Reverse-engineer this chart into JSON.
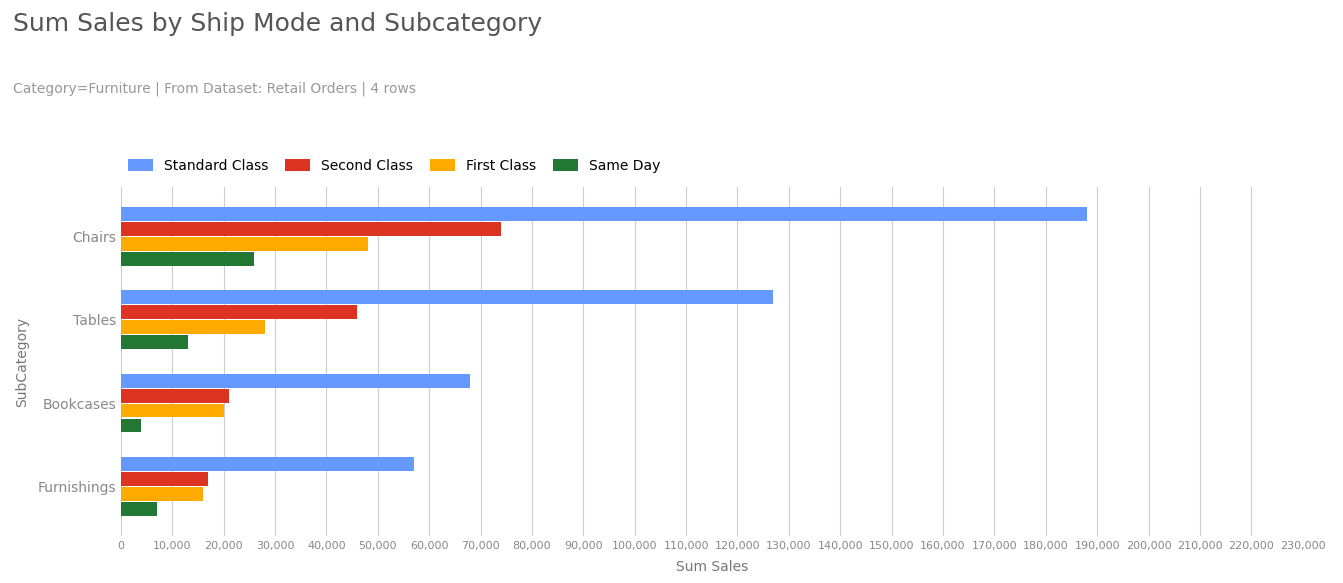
{
  "title": "Sum Sales by Ship Mode and Subcategory",
  "subtitle": "Category=Furniture | From Dataset: Retail Orders | 4 rows",
  "xlabel": "Sum Sales",
  "ylabel": "SubCategory",
  "categories": [
    "Chairs",
    "Tables",
    "Bookcases",
    "Furnishings"
  ],
  "ship_modes": [
    "Standard Class",
    "Second Class",
    "First Class",
    "Same Day"
  ],
  "colors": [
    "#6699FF",
    "#DD3322",
    "#FFAA00",
    "#227733"
  ],
  "values": {
    "Chairs": [
      188000,
      74000,
      48000,
      26000
    ],
    "Tables": [
      127000,
      46000,
      28000,
      13000
    ],
    "Bookcases": [
      68000,
      21000,
      20000,
      4000
    ],
    "Furnishings": [
      57000,
      17000,
      16000,
      7000
    ]
  },
  "xlim": [
    0,
    230000
  ],
  "xtick_step": 10000,
  "background_color": "#ffffff",
  "grid_color": "#cccccc",
  "title_fontsize": 18,
  "subtitle_fontsize": 10,
  "axis_label_fontsize": 10,
  "tick_fontsize": 8,
  "legend_fontsize": 10,
  "bar_height": 0.18,
  "title_color": "#555555",
  "subtitle_color": "#999999",
  "ylabel_color": "#777777",
  "xlabel_color": "#777777",
  "yticklabel_color": "#888888",
  "xticklabel_color": "#888888"
}
